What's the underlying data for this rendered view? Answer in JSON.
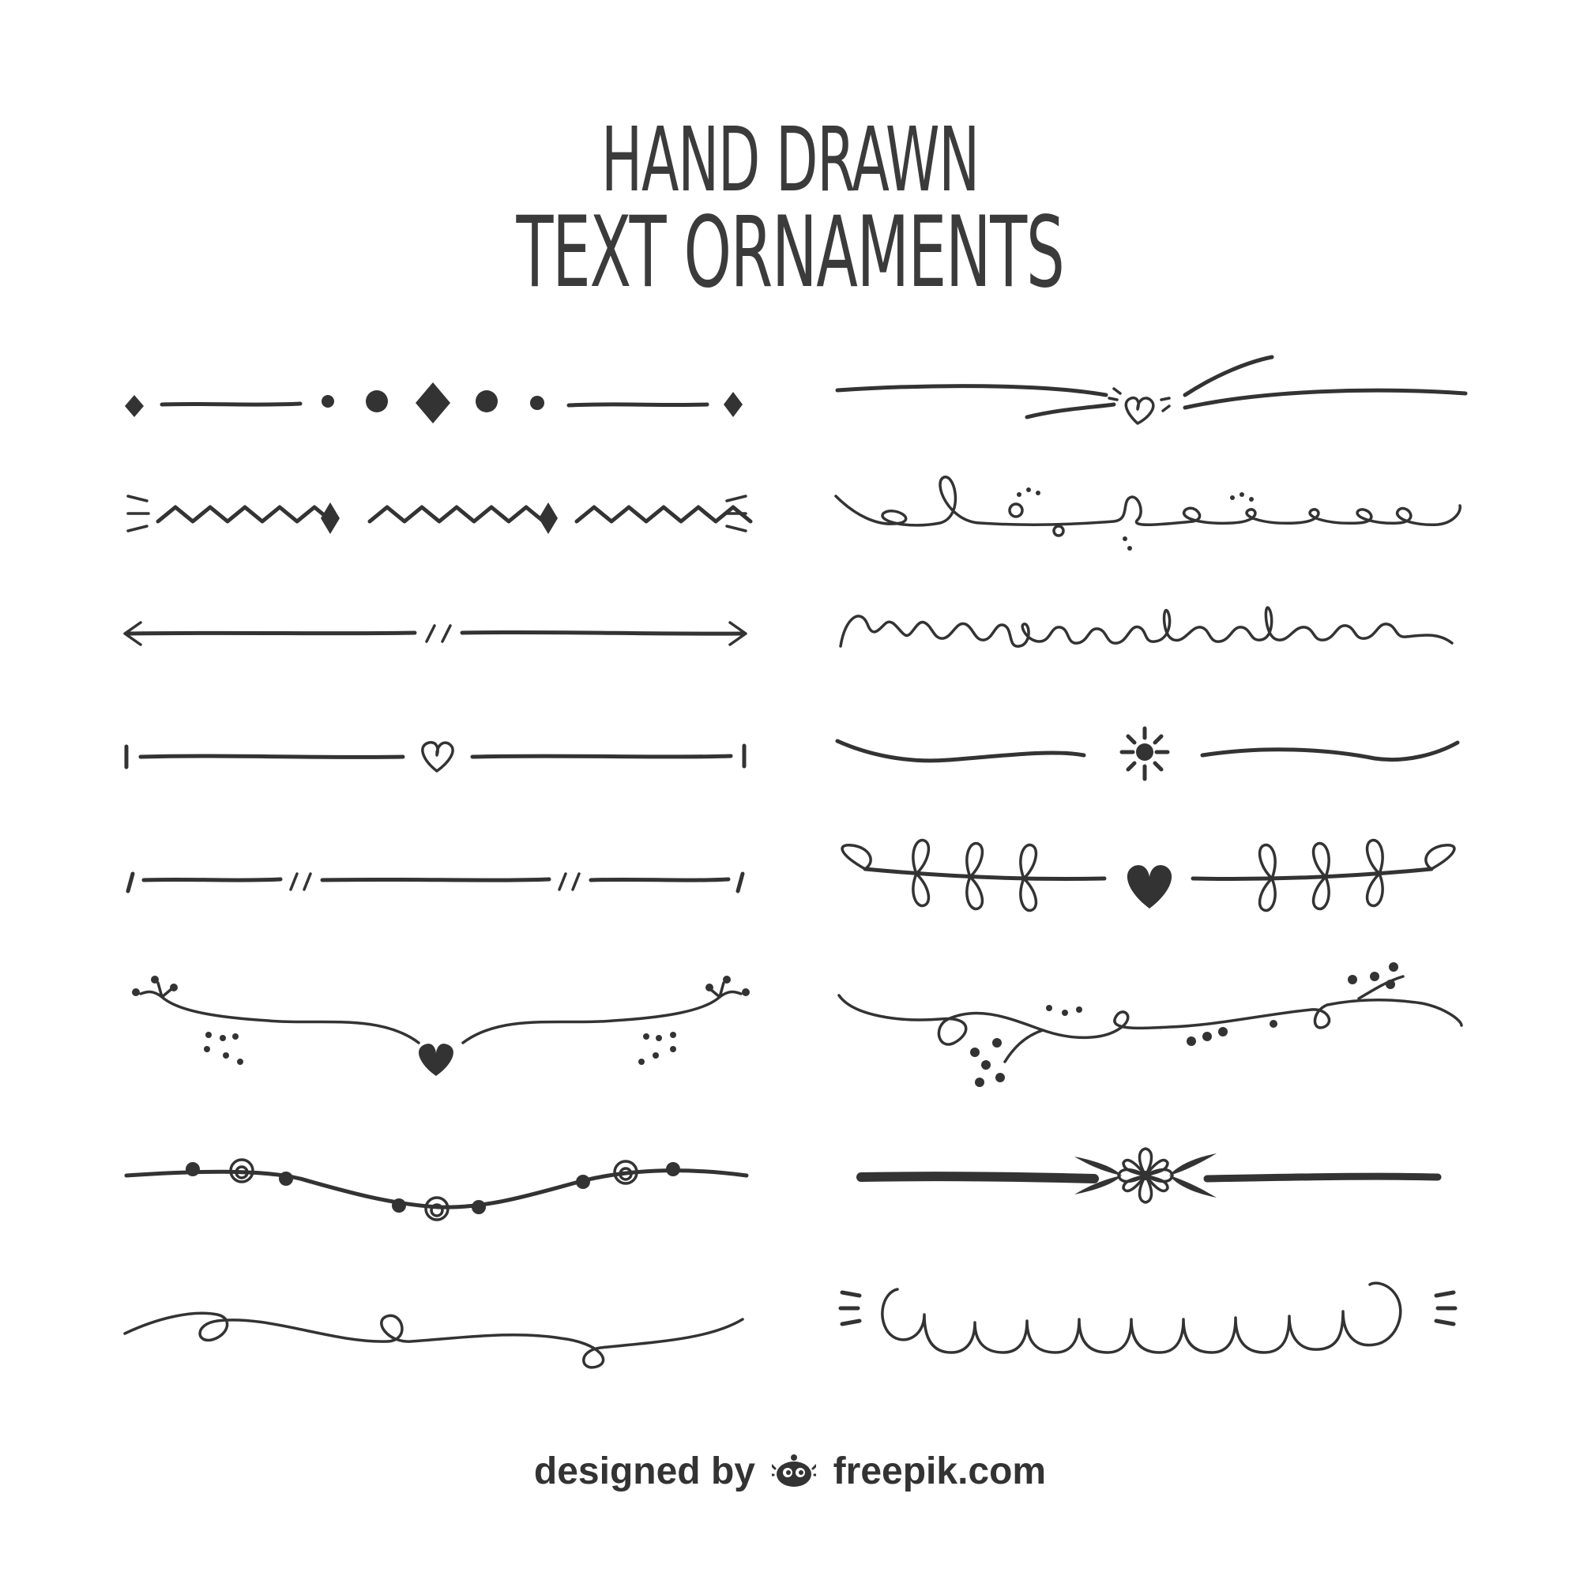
{
  "title": {
    "line1": "HAND DRAWN",
    "line2": "TEXT ORNAMENTS"
  },
  "credit": {
    "prefix": "designed by",
    "brand": "freepik.com",
    "logo_icon": "freepik-logo-icon"
  },
  "colors": {
    "ink": "#333333",
    "background": "#ffffff"
  },
  "ornaments": {
    "left_column": [
      "diamond-dot-divider",
      "zigzag-divider",
      "double-arrow-divider",
      "heart-line-divider",
      "slash-dash-divider",
      "sprig-heart-divider",
      "beaded-swag-divider",
      "loop-wave-divider"
    ],
    "right_column": [
      "swoosh-heart-divider",
      "loop-dot-divider",
      "cursive-loop-divider",
      "sun-line-divider",
      "laurel-heart-divider",
      "vine-dot-divider",
      "flower-bar-divider",
      "scallop-divider"
    ]
  }
}
